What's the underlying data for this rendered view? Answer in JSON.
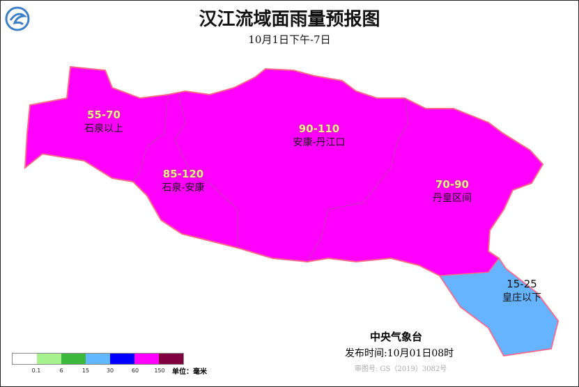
{
  "title": "汉江流域面雨量预报图",
  "subtitle": "10月1日下午-7日",
  "regions": [
    {
      "name": "石泉以上",
      "value": "55-70",
      "color": "#ff00ff"
    },
    {
      "name": "石泉-安康",
      "value": "85-120",
      "color": "#ff00ff"
    },
    {
      "name": "安康-丹江口",
      "value": "90-110",
      "color": "#ff00ff"
    },
    {
      "name": "丹皇区间",
      "value": "70-90",
      "color": "#ff00ff"
    },
    {
      "name": "皇庄以下",
      "value": "15-25",
      "color": "#66b3ff"
    }
  ],
  "legend": {
    "colors": [
      "#ffffff",
      "#a6f28f",
      "#3cb93c",
      "#61b8ff",
      "#0000ff",
      "#ff00ff",
      "#800040"
    ],
    "ticks": [
      "0.1",
      "6",
      "15",
      "30",
      "60",
      "150"
    ],
    "unit": "单位：毫米"
  },
  "footer": {
    "agency": "中央气象台",
    "issue_time": "发布时间:10月01日08时",
    "approval": "审图号: GS（2019）3082号"
  },
  "logo_icon": "cma-logo-icon"
}
